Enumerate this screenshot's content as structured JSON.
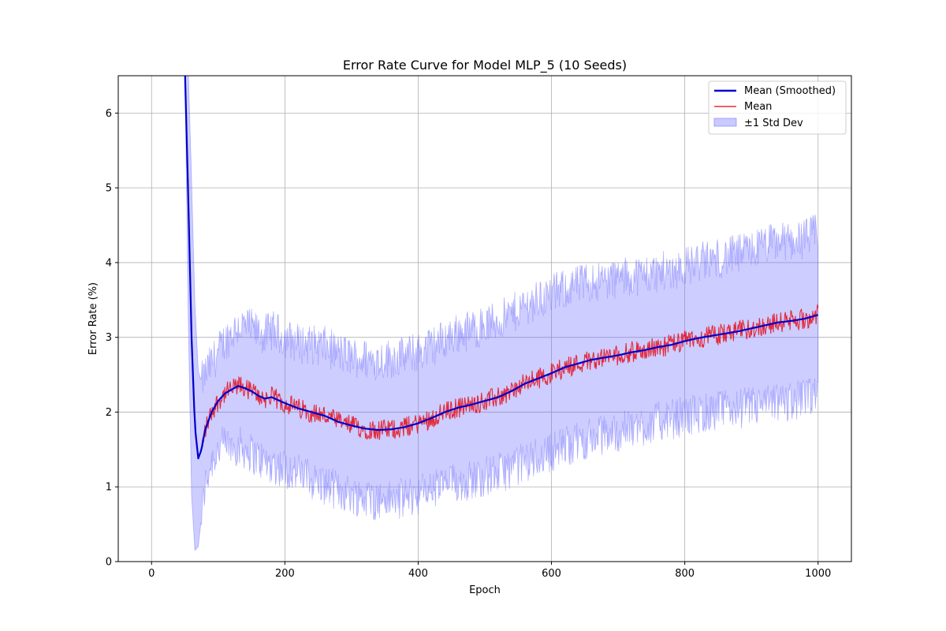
{
  "chart_data": {
    "type": "line",
    "title": "Error Rate Curve for Model MLP_5 (10 Seeds)",
    "xlabel": "Epoch",
    "ylabel": "Error Rate (%)",
    "xlim": [
      -50,
      1050
    ],
    "ylim": [
      0,
      6.5
    ],
    "xticks": [
      0,
      200,
      400,
      600,
      800,
      1000
    ],
    "yticks": [
      0,
      1,
      2,
      3,
      4,
      5,
      6
    ],
    "grid": true,
    "legend_position": "top-right",
    "colors": {
      "smoothed": "#0000cc",
      "mean": "#e8000b",
      "band": "#6666ff"
    },
    "series": [
      {
        "name": "Mean (Smoothed)",
        "role": "smoothed",
        "x": [
          50,
          55,
          60,
          65,
          70,
          75,
          80,
          90,
          100,
          110,
          120,
          130,
          140,
          150,
          160,
          170,
          180,
          200,
          220,
          240,
          260,
          280,
          300,
          320,
          340,
          360,
          380,
          400,
          420,
          440,
          460,
          480,
          500,
          520,
          540,
          560,
          580,
          600,
          620,
          640,
          660,
          680,
          700,
          720,
          740,
          760,
          780,
          800,
          820,
          840,
          860,
          880,
          900,
          920,
          940,
          960,
          980,
          1000
        ],
        "y": [
          6.6,
          4.9,
          3.0,
          1.8,
          1.38,
          1.5,
          1.75,
          2.0,
          2.15,
          2.25,
          2.3,
          2.35,
          2.32,
          2.28,
          2.22,
          2.18,
          2.2,
          2.12,
          2.05,
          2.0,
          1.95,
          1.87,
          1.82,
          1.78,
          1.76,
          1.77,
          1.8,
          1.85,
          1.92,
          2.0,
          2.06,
          2.1,
          2.15,
          2.2,
          2.28,
          2.38,
          2.45,
          2.52,
          2.6,
          2.65,
          2.7,
          2.73,
          2.76,
          2.8,
          2.83,
          2.87,
          2.9,
          2.95,
          2.99,
          3.02,
          3.05,
          3.08,
          3.12,
          3.16,
          3.2,
          3.22,
          3.25,
          3.3
        ]
      },
      {
        "name": "Mean",
        "role": "mean",
        "x": [
          50,
          55,
          60,
          65,
          70,
          75,
          80,
          90,
          100,
          110,
          120,
          130,
          140,
          150,
          160,
          170,
          180,
          200,
          220,
          240,
          260,
          280,
          300,
          320,
          340,
          360,
          380,
          400,
          420,
          440,
          460,
          480,
          500,
          520,
          540,
          560,
          580,
          600,
          620,
          640,
          660,
          680,
          700,
          720,
          740,
          760,
          780,
          800,
          820,
          840,
          860,
          880,
          900,
          920,
          940,
          960,
          980,
          1000
        ],
        "y": [
          6.6,
          4.9,
          3.0,
          1.8,
          1.38,
          1.5,
          1.75,
          2.0,
          2.15,
          2.25,
          2.3,
          2.35,
          2.32,
          2.28,
          2.22,
          2.18,
          2.2,
          2.12,
          2.05,
          2.0,
          1.95,
          1.87,
          1.82,
          1.78,
          1.76,
          1.77,
          1.8,
          1.85,
          1.92,
          2.0,
          2.06,
          2.1,
          2.15,
          2.2,
          2.28,
          2.38,
          2.45,
          2.52,
          2.6,
          2.65,
          2.7,
          2.73,
          2.76,
          2.8,
          2.83,
          2.87,
          2.9,
          2.95,
          2.99,
          3.02,
          3.05,
          3.08,
          3.12,
          3.16,
          3.2,
          3.22,
          3.25,
          3.3
        ]
      },
      {
        "name": "±1 Std Dev",
        "role": "band",
        "x": [
          50,
          55,
          60,
          65,
          70,
          75,
          80,
          90,
          100,
          110,
          120,
          130,
          140,
          150,
          160,
          170,
          180,
          200,
          220,
          240,
          260,
          280,
          300,
          320,
          340,
          360,
          380,
          400,
          420,
          440,
          460,
          480,
          500,
          520,
          540,
          560,
          580,
          600,
          620,
          640,
          660,
          680,
          700,
          720,
          740,
          760,
          780,
          800,
          820,
          840,
          860,
          880,
          900,
          920,
          940,
          960,
          980,
          1000
        ],
        "lower": [
          6.6,
          3.3,
          0.9,
          0.15,
          0.2,
          0.6,
          1.0,
          1.35,
          1.5,
          1.55,
          1.55,
          1.55,
          1.5,
          1.45,
          1.38,
          1.33,
          1.3,
          1.25,
          1.18,
          1.1,
          1.02,
          0.95,
          0.9,
          0.85,
          0.82,
          0.82,
          0.85,
          0.9,
          0.96,
          1.02,
          1.06,
          1.1,
          1.14,
          1.18,
          1.25,
          1.33,
          1.4,
          1.47,
          1.55,
          1.6,
          1.65,
          1.7,
          1.73,
          1.78,
          1.82,
          1.87,
          1.9,
          1.95,
          1.98,
          2.0,
          2.03,
          2.05,
          2.07,
          2.09,
          2.12,
          2.15,
          2.18,
          2.2
        ],
        "upper": [
          6.6,
          6.6,
          5.1,
          3.45,
          2.55,
          2.4,
          2.5,
          2.65,
          2.8,
          2.95,
          3.05,
          3.15,
          3.14,
          3.11,
          3.06,
          3.03,
          3.1,
          2.99,
          2.92,
          2.9,
          2.88,
          2.79,
          2.74,
          2.71,
          2.7,
          2.72,
          2.75,
          2.8,
          2.88,
          2.98,
          3.06,
          3.1,
          3.16,
          3.22,
          3.31,
          3.43,
          3.5,
          3.57,
          3.65,
          3.7,
          3.75,
          3.76,
          3.79,
          3.82,
          3.84,
          3.87,
          3.9,
          3.95,
          4.0,
          4.04,
          4.07,
          4.11,
          4.17,
          4.23,
          4.28,
          4.29,
          4.32,
          4.4
        ]
      }
    ]
  }
}
